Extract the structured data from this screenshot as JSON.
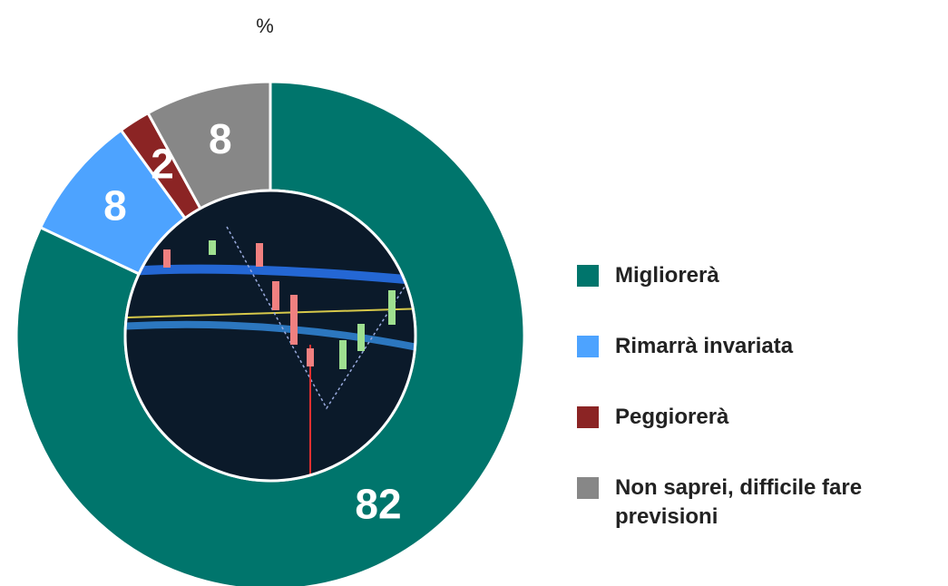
{
  "chart_data": {
    "type": "donut",
    "title": "%",
    "categories": [
      "Migliorerà",
      "Rimarrà invariata",
      "Peggiorerà",
      "Non saprei, difficile fare previsioni"
    ],
    "values": [
      82,
      8,
      2,
      8
    ],
    "colors": [
      "#00756c",
      "#4da3ff",
      "#8b2424",
      "#878787"
    ]
  }
}
